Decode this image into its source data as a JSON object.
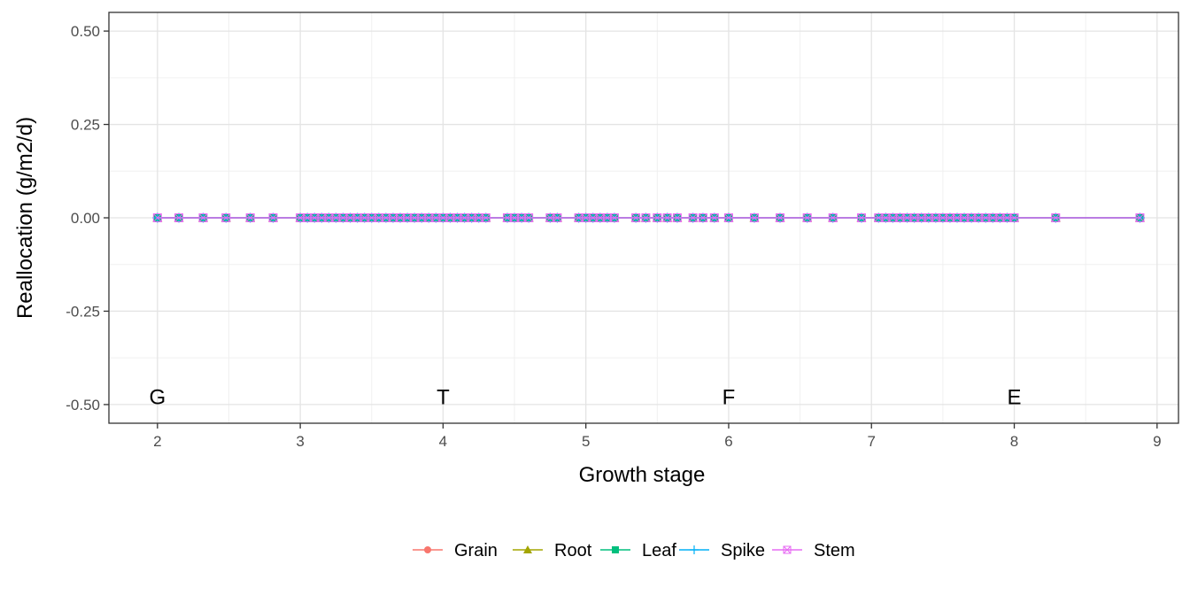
{
  "chart_data": {
    "type": "line",
    "title": "",
    "xlabel": "Growth stage",
    "ylabel": "Reallocation (g/m2/d)",
    "xlim": [
      1.66,
      9.15
    ],
    "ylim": [
      -0.55,
      0.55
    ],
    "x_ticks": [
      2,
      3,
      4,
      5,
      6,
      7,
      8,
      9
    ],
    "x_tick_labels": [
      "2",
      "3",
      "4",
      "5",
      "6",
      "7",
      "8",
      "9"
    ],
    "y_ticks": [
      0.5,
      0.25,
      0.0,
      -0.25,
      -0.5
    ],
    "y_tick_labels": [
      "0.50",
      "0.25",
      "0.00",
      "-0.25",
      "-0.50"
    ],
    "grid": true,
    "legend_position": "bottom",
    "stage_annotations": [
      {
        "label": "G",
        "x": 2,
        "y": -0.48
      },
      {
        "label": "T",
        "x": 4,
        "y": -0.48
      },
      {
        "label": "F",
        "x": 6,
        "y": -0.48
      },
      {
        "label": "E",
        "x": 8,
        "y": -0.48
      }
    ],
    "x": [
      2.0,
      2.15,
      2.32,
      2.48,
      2.65,
      2.81,
      3.0,
      3.05,
      3.1,
      3.15,
      3.2,
      3.25,
      3.3,
      3.35,
      3.4,
      3.45,
      3.5,
      3.55,
      3.6,
      3.65,
      3.7,
      3.75,
      3.8,
      3.85,
      3.9,
      3.95,
      4.0,
      4.05,
      4.1,
      4.15,
      4.2,
      4.25,
      4.3,
      4.45,
      4.5,
      4.55,
      4.6,
      4.75,
      4.8,
      4.95,
      5.0,
      5.05,
      5.1,
      5.15,
      5.2,
      5.35,
      5.42,
      5.5,
      5.57,
      5.64,
      5.75,
      5.82,
      5.9,
      6.0,
      6.18,
      6.36,
      6.55,
      6.73,
      6.93,
      7.05,
      7.1,
      7.15,
      7.2,
      7.25,
      7.3,
      7.35,
      7.4,
      7.45,
      7.5,
      7.55,
      7.6,
      7.65,
      7.7,
      7.75,
      7.8,
      7.85,
      7.9,
      7.95,
      8.0,
      8.29,
      8.88
    ],
    "series": [
      {
        "name": "Grain",
        "color": "#f8766d",
        "marker": "circle",
        "values": 0.0
      },
      {
        "name": "Root",
        "color": "#a3a500",
        "marker": "triangle",
        "values": 0.0
      },
      {
        "name": "Leaf",
        "color": "#00bf7d",
        "marker": "square",
        "values": 0.0
      },
      {
        "name": "Spike",
        "color": "#00b0f6",
        "marker": "plus",
        "values": 0.0
      },
      {
        "name": "Stem",
        "color": "#e76bf3",
        "marker": "square-cross",
        "values": 0.0
      }
    ]
  }
}
